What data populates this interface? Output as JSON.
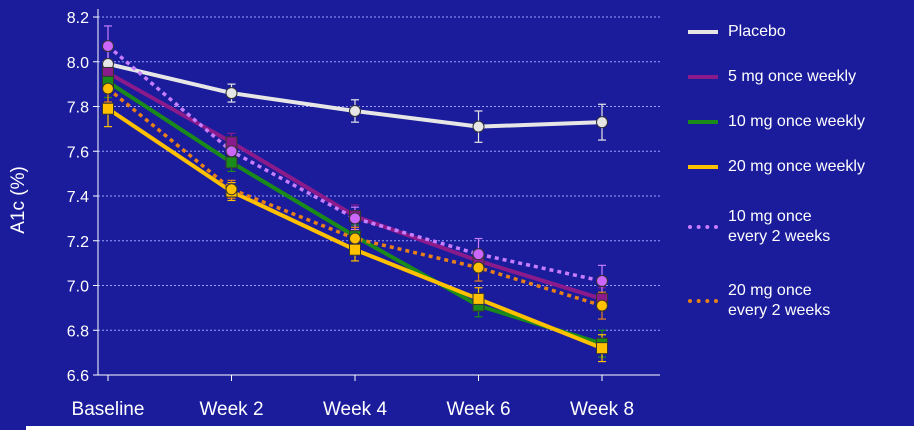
{
  "colors": {
    "background": "#1b1c9b",
    "grid": "#9aa0ff",
    "axis": "#ffffff"
  },
  "chart_data": {
    "type": "line",
    "title": "",
    "xlabel": "",
    "ylabel": "A1c (%)",
    "categories": [
      "Baseline",
      "Week 2",
      "Week 4",
      "Week 6",
      "Week 8"
    ],
    "ylim": [
      6.6,
      8.2
    ],
    "yticks": [
      "6.6",
      "6.8",
      "7.0",
      "7.2",
      "7.4",
      "7.6",
      "7.8",
      "8.0",
      "8.2"
    ],
    "grid": "horizontal dotted",
    "legend_placement": "right",
    "series": [
      {
        "name": "Placebo",
        "color": "#e6e6e6",
        "style": "solid",
        "marker": "circle",
        "marker_color": "#e6e6e6",
        "values": [
          7.99,
          7.86,
          7.78,
          7.71,
          7.73
        ],
        "error": [
          0.07,
          0.04,
          0.05,
          0.07,
          0.08
        ]
      },
      {
        "name": "5 mg once weekly",
        "color": "#8b1a8b",
        "style": "solid",
        "marker": "square",
        "marker_color": "#8b1a8b",
        "values": [
          7.95,
          7.64,
          7.31,
          7.11,
          6.94
        ],
        "error": [
          0.06,
          0.04,
          0.05,
          0.05,
          0.05
        ]
      },
      {
        "name": "10 mg once weekly",
        "color": "#1a8a1a",
        "style": "solid",
        "marker": "square",
        "marker_color": "#1a8a1a",
        "values": [
          7.91,
          7.55,
          7.22,
          6.91,
          6.74
        ],
        "error": [
          0.07,
          0.04,
          0.05,
          0.05,
          0.06
        ]
      },
      {
        "name": "20 mg once weekly",
        "color": "#ffc000",
        "style": "solid",
        "marker": "square",
        "marker_color": "#ffc000",
        "values": [
          7.79,
          7.42,
          7.16,
          6.94,
          6.72
        ],
        "error": [
          0.08,
          0.04,
          0.05,
          0.05,
          0.06
        ]
      },
      {
        "name": "10 mg once\nevery 2 weeks",
        "color": "#c77dff",
        "style": "dotted",
        "marker": "circle",
        "marker_color": "#cc66ff",
        "values": [
          8.07,
          7.6,
          7.3,
          7.14,
          7.02
        ],
        "error": [
          0.09,
          0.05,
          0.05,
          0.07,
          0.07
        ]
      },
      {
        "name": "20 mg once\nevery 2 weeks",
        "color": "#e8801a",
        "style": "dotted",
        "marker": "circle",
        "marker_color": "#ffc000",
        "values": [
          7.88,
          7.43,
          7.21,
          7.08,
          6.91
        ],
        "error": [
          0.06,
          0.04,
          0.05,
          0.06,
          0.06
        ]
      }
    ]
  }
}
